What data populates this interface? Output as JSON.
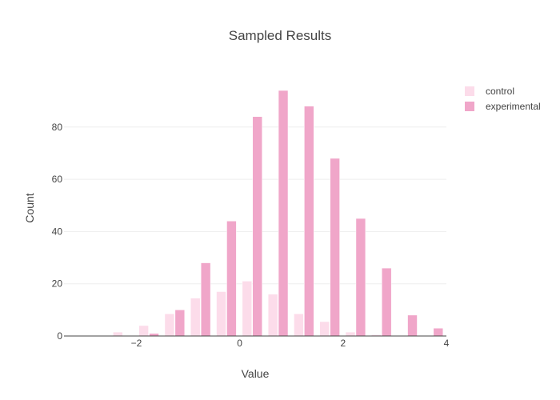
{
  "chart_data": {
    "type": "bar",
    "title": "Sampled Results",
    "xlabel": "Value",
    "ylabel": "Count",
    "xlim": [
      -3.4,
      4
    ],
    "ylim": [
      0,
      98
    ],
    "x_ticks": [
      -2,
      0,
      2,
      4
    ],
    "x_tick_labels": [
      "−2",
      "0",
      "2",
      "4"
    ],
    "y_ticks": [
      0,
      20,
      40,
      60,
      80
    ],
    "y_tick_labels": [
      "0",
      "20",
      "40",
      "60",
      "80"
    ],
    "grid": true,
    "legend_position": "top-right",
    "bin_width": 0.5,
    "series": [
      {
        "name": "control",
        "color": "#fcdcea",
        "x": [
          -3.25,
          -2.75,
          -2.25,
          -1.75,
          -1.25,
          -0.75,
          -0.25,
          0.25,
          0.75,
          1.25,
          1.75,
          2.25,
          2.75,
          3.25,
          3.75
        ],
        "values": [
          0,
          0,
          1.5,
          4,
          8.5,
          14.5,
          17,
          21,
          16,
          8.5,
          5.5,
          1.5,
          0.5,
          0,
          0
        ]
      },
      {
        "name": "experimental",
        "color": "#f0a6c9",
        "x": [
          -3.25,
          -2.75,
          -2.25,
          -1.75,
          -1.25,
          -0.75,
          -0.25,
          0.25,
          0.75,
          1.25,
          1.75,
          2.25,
          2.75,
          3.25,
          3.75
        ],
        "values": [
          0,
          0,
          0,
          1,
          10,
          28,
          44,
          84,
          94,
          88,
          68,
          45,
          26,
          8,
          3
        ]
      }
    ]
  }
}
